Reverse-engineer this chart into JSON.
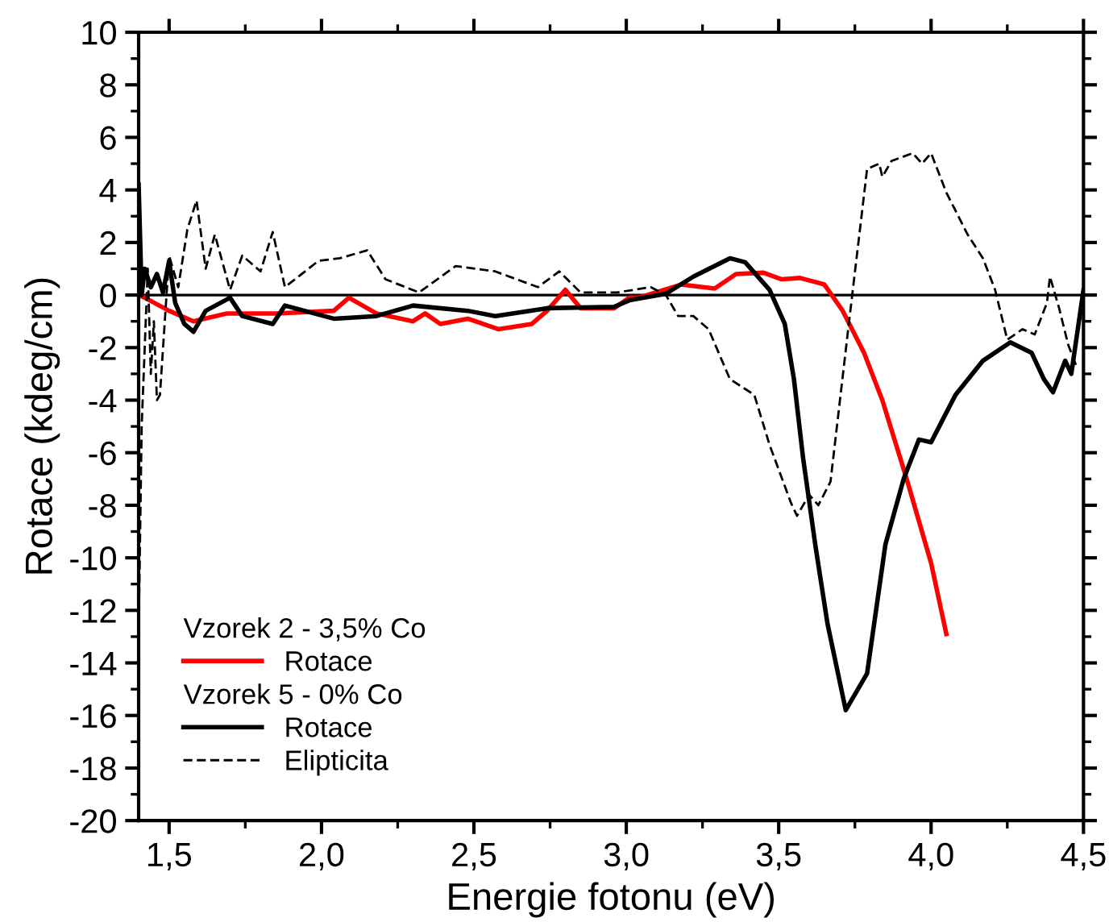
{
  "chart_data": {
    "type": "line",
    "xlabel": "Energie fotonu (eV)",
    "ylabel": "Rotace (kdeg/cm)",
    "xlim": [
      1.4,
      4.5
    ],
    "ylim": [
      -20,
      10
    ],
    "xticks": [
      {
        "value": 1.5,
        "label": "1,5"
      },
      {
        "value": 2.0,
        "label": "2,0"
      },
      {
        "value": 2.5,
        "label": "2,5"
      },
      {
        "value": 3.0,
        "label": "3,0"
      },
      {
        "value": 3.5,
        "label": "3,5"
      },
      {
        "value": 4.0,
        "label": "4,0"
      },
      {
        "value": 4.5,
        "label": "4,5"
      }
    ],
    "yticks": [
      -20,
      -18,
      -16,
      -14,
      -12,
      -10,
      -8,
      -6,
      -4,
      -2,
      0,
      2,
      4,
      6,
      8,
      10
    ],
    "grid": false,
    "legend": "bottom left",
    "marker": "none",
    "annotations": [
      "Vzorek 2 - 3,5% Co",
      "Vzorek 5 - 0% Co"
    ],
    "ref_lines": [
      {
        "axis": "y",
        "value": 0,
        "color": "#000000",
        "line_style": "solid"
      }
    ],
    "series": [
      {
        "name": "Rotace",
        "color": "#ff0000",
        "line_style": "solid",
        "x": [
          1.4,
          1.42,
          1.5,
          1.58,
          1.69,
          1.85,
          2.04,
          2.09,
          2.18,
          2.3,
          2.34,
          2.39,
          2.48,
          2.58,
          2.69,
          2.74,
          2.8,
          2.85,
          2.96,
          3.01,
          3.04,
          3.18,
          3.29,
          3.36,
          3.45,
          3.51,
          3.57,
          3.65,
          3.71,
          3.78,
          3.84,
          3.92,
          4.0,
          4.05
        ],
        "values": [
          0.0,
          -0.1,
          -0.6,
          -1.0,
          -0.7,
          -0.7,
          -0.6,
          -0.1,
          -0.7,
          -1.0,
          -0.7,
          -1.1,
          -0.9,
          -1.3,
          -1.1,
          -0.6,
          0.2,
          -0.5,
          -0.5,
          -0.1,
          -0.1,
          0.4,
          0.25,
          0.8,
          0.85,
          0.6,
          0.65,
          0.4,
          -0.6,
          -2.2,
          -4.0,
          -7.0,
          -10.2,
          -12.9
        ]
      },
      {
        "name": "Rotace",
        "color": "#000000",
        "line_style": "solid",
        "x": [
          1.4,
          1.41,
          1.42,
          1.44,
          1.46,
          1.48,
          1.5,
          1.52,
          1.55,
          1.58,
          1.62,
          1.7,
          1.74,
          1.84,
          1.88,
          2.04,
          2.18,
          2.3,
          2.48,
          2.57,
          2.74,
          2.96,
          3.01,
          3.13,
          3.22,
          3.34,
          3.39,
          3.47,
          3.52,
          3.55,
          3.58,
          3.62,
          3.66,
          3.72,
          3.79,
          3.85,
          3.91,
          3.96,
          4.0,
          4.08,
          4.17,
          4.26,
          4.33,
          4.37,
          4.4,
          4.44,
          4.46,
          4.5
        ],
        "values": [
          4.2,
          0.0,
          1.0,
          0.3,
          0.8,
          0.1,
          1.3,
          -0.3,
          -1.1,
          -1.4,
          -0.6,
          -0.1,
          -0.8,
          -1.1,
          -0.4,
          -0.9,
          -0.8,
          -0.4,
          -0.6,
          -0.8,
          -0.5,
          -0.45,
          -0.2,
          0.05,
          0.7,
          1.4,
          1.25,
          0.2,
          -1.1,
          -3.2,
          -6.2,
          -9.5,
          -12.5,
          -15.8,
          -14.4,
          -9.5,
          -7.0,
          -5.5,
          -5.6,
          -3.8,
          -2.5,
          -1.8,
          -2.2,
          -3.2,
          -3.7,
          -2.5,
          -3.0,
          0.2
        ]
      },
      {
        "name": "Elipticita",
        "color": "#000000",
        "line_style": "dashed",
        "x": [
          1.4,
          1.41,
          1.42,
          1.43,
          1.44,
          1.45,
          1.46,
          1.47,
          1.5,
          1.53,
          1.56,
          1.59,
          1.62,
          1.65,
          1.7,
          1.74,
          1.8,
          1.84,
          1.88,
          1.99,
          2.06,
          2.15,
          2.21,
          2.32,
          2.44,
          2.57,
          2.71,
          2.78,
          2.85,
          2.97,
          3.08,
          3.13,
          3.17,
          3.22,
          3.27,
          3.34,
          3.42,
          3.47,
          3.54,
          3.56,
          3.6,
          3.63,
          3.67,
          3.73,
          3.79,
          3.83,
          3.84,
          3.87,
          3.94,
          3.97,
          4.0,
          4.05,
          4.12,
          4.17,
          4.21,
          4.25,
          4.3,
          4.34,
          4.38,
          4.39,
          4.42,
          4.45,
          4.48
        ],
        "values": [
          -13.0,
          -5.0,
          -2.0,
          1.0,
          -3.0,
          -1.0,
          -4.0,
          -3.8,
          1.5,
          0.3,
          2.5,
          3.6,
          1.0,
          2.3,
          0.2,
          1.5,
          0.9,
          2.4,
          0.3,
          1.3,
          1.4,
          1.7,
          0.6,
          0.1,
          1.1,
          0.9,
          0.3,
          0.9,
          0.1,
          0.1,
          0.3,
          0.0,
          -0.8,
          -0.8,
          -1.3,
          -3.2,
          -3.8,
          -5.7,
          -7.9,
          -8.4,
          -7.6,
          -8.0,
          -7.1,
          -1.1,
          4.8,
          5.0,
          4.5,
          5.1,
          5.4,
          5.0,
          5.4,
          3.9,
          2.3,
          1.4,
          0.2,
          -1.7,
          -1.3,
          -1.5,
          -0.3,
          0.7,
          -0.5,
          -1.9,
          -2.8
        ]
      }
    ]
  }
}
